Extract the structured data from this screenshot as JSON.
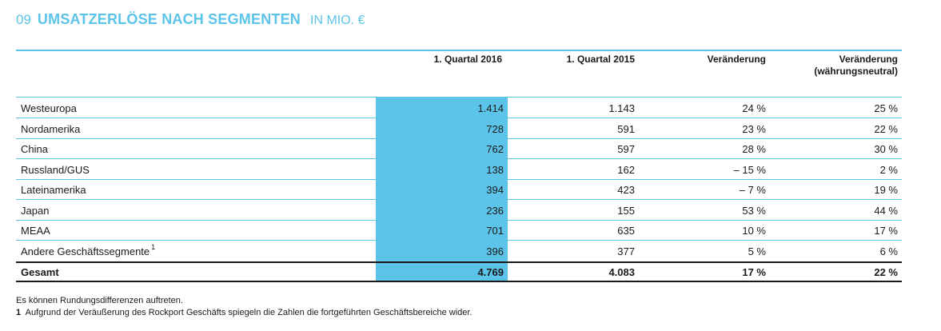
{
  "title": {
    "number": "09",
    "main": "UMSATZERLÖSE NACH SEGMENTEN",
    "unit": "IN MIO. €"
  },
  "columns": [
    "1. Quartal 2016",
    "1. Quartal 2015",
    "Veränderung",
    "Veränderung (währungsneutral)"
  ],
  "rows": [
    {
      "label": "Westeuropa",
      "footnote": "",
      "q2016": "1.414",
      "q2015": "1.143",
      "change": "24 %",
      "change_cn": "25 %"
    },
    {
      "label": "Nordamerika",
      "footnote": "",
      "q2016": "728",
      "q2015": "591",
      "change": "23 %",
      "change_cn": "22 %"
    },
    {
      "label": "China",
      "footnote": "",
      "q2016": "762",
      "q2015": "597",
      "change": "28 %",
      "change_cn": "30 %"
    },
    {
      "label": "Russland/GUS",
      "footnote": "",
      "q2016": "138",
      "q2015": "162",
      "change": "– 15 %",
      "change_cn": "2 %"
    },
    {
      "label": "Lateinamerika",
      "footnote": "",
      "q2016": "394",
      "q2015": "423",
      "change": "– 7 %",
      "change_cn": "19 %"
    },
    {
      "label": "Japan",
      "footnote": "",
      "q2016": "236",
      "q2015": "155",
      "change": "53 %",
      "change_cn": "44 %"
    },
    {
      "label": "MEAA",
      "footnote": "",
      "q2016": "701",
      "q2015": "635",
      "change": "10 %",
      "change_cn": "17 %"
    },
    {
      "label": "Andere Geschäftssegmente",
      "footnote": "1",
      "q2016": "396",
      "q2015": "377",
      "change": "5 %",
      "change_cn": "6 %"
    }
  ],
  "total": {
    "label": "Gesamt",
    "q2016": "4.769",
    "q2015": "4.083",
    "change": "17 %",
    "change_cn": "22 %"
  },
  "notes": {
    "rounding": "Es können Rundungsdifferenzen auftreten.",
    "footnote_marker": "1",
    "footnote_text": "Aufgrund der Veräußerung des Rockport Geschäfts spiegeln die Zahlen die fortgeführten Geschäftsbereiche wider."
  },
  "colors": {
    "accent": "#5bc4e8",
    "text": "#1a1a1a"
  }
}
